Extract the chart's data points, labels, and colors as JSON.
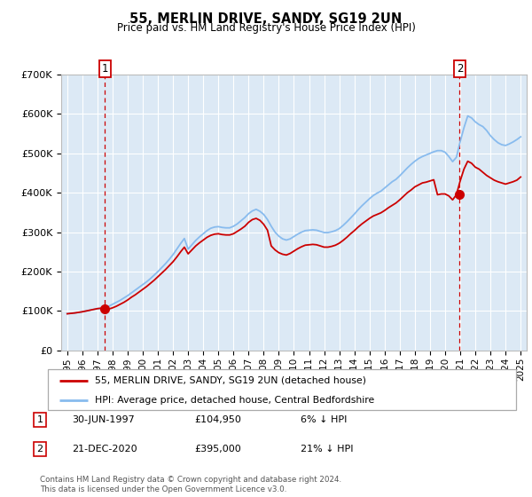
{
  "title": "55, MERLIN DRIVE, SANDY, SG19 2UN",
  "subtitle": "Price paid vs. HM Land Registry's House Price Index (HPI)",
  "background_color": "#dce9f5",
  "plot_bg_color": "#dce9f5",
  "ylim": [
    0,
    700000
  ],
  "yticks": [
    0,
    100000,
    200000,
    300000,
    400000,
    500000,
    600000,
    700000
  ],
  "ytick_labels": [
    "£0",
    "£100K",
    "£200K",
    "£300K",
    "£400K",
    "£500K",
    "£600K",
    "£700K"
  ],
  "xlim_start": 1994.6,
  "xlim_end": 2025.4,
  "xtick_years": [
    1995,
    1996,
    1997,
    1998,
    1999,
    2000,
    2001,
    2002,
    2003,
    2004,
    2005,
    2006,
    2007,
    2008,
    2009,
    2010,
    2011,
    2012,
    2013,
    2014,
    2015,
    2016,
    2017,
    2018,
    2019,
    2020,
    2021,
    2022,
    2023,
    2024,
    2025
  ],
  "sale1_x": 1997.5,
  "sale1_y": 104950,
  "sale1_label": "1",
  "sale2_x": 2020.97,
  "sale2_y": 395000,
  "sale2_label": "2",
  "sale_color": "#cc0000",
  "hpi_color": "#88bbee",
  "marker_color": "#cc0000",
  "vline_color": "#cc0000",
  "legend_label_sale": "55, MERLIN DRIVE, SANDY, SG19 2UN (detached house)",
  "legend_label_hpi": "HPI: Average price, detached house, Central Bedfordshire",
  "table_row1_num": "1",
  "table_row1_date": "30-JUN-1997",
  "table_row1_price": "£104,950",
  "table_row1_hpi": "6% ↓ HPI",
  "table_row2_num": "2",
  "table_row2_date": "21-DEC-2020",
  "table_row2_price": "£395,000",
  "table_row2_hpi": "21% ↓ HPI",
  "footer": "Contains HM Land Registry data © Crown copyright and database right 2024.\nThis data is licensed under the Open Government Licence v3.0.",
  "grid_color": "#ffffff",
  "hpi_data_x": [
    1995.0,
    1995.25,
    1995.5,
    1995.75,
    1996.0,
    1996.25,
    1996.5,
    1996.75,
    1997.0,
    1997.25,
    1997.5,
    1997.75,
    1998.0,
    1998.25,
    1998.5,
    1998.75,
    1999.0,
    1999.25,
    1999.5,
    1999.75,
    2000.0,
    2000.25,
    2000.5,
    2000.75,
    2001.0,
    2001.25,
    2001.5,
    2001.75,
    2002.0,
    2002.25,
    2002.5,
    2002.75,
    2003.0,
    2003.25,
    2003.5,
    2003.75,
    2004.0,
    2004.25,
    2004.5,
    2004.75,
    2005.0,
    2005.25,
    2005.5,
    2005.75,
    2006.0,
    2006.25,
    2006.5,
    2006.75,
    2007.0,
    2007.25,
    2007.5,
    2007.75,
    2008.0,
    2008.25,
    2008.5,
    2008.75,
    2009.0,
    2009.25,
    2009.5,
    2009.75,
    2010.0,
    2010.25,
    2010.5,
    2010.75,
    2011.0,
    2011.25,
    2011.5,
    2011.75,
    2012.0,
    2012.25,
    2012.5,
    2012.75,
    2013.0,
    2013.25,
    2013.5,
    2013.75,
    2014.0,
    2014.25,
    2014.5,
    2014.75,
    2015.0,
    2015.25,
    2015.5,
    2015.75,
    2016.0,
    2016.25,
    2016.5,
    2016.75,
    2017.0,
    2017.25,
    2017.5,
    2017.75,
    2018.0,
    2018.25,
    2018.5,
    2018.75,
    2019.0,
    2019.25,
    2019.5,
    2019.75,
    2020.0,
    2020.25,
    2020.5,
    2020.75,
    2021.0,
    2021.25,
    2021.5,
    2021.75,
    2022.0,
    2022.25,
    2022.5,
    2022.75,
    2023.0,
    2023.25,
    2023.5,
    2023.75,
    2024.0,
    2024.25,
    2024.5,
    2024.75,
    2025.0
  ],
  "hpi_data_y": [
    93000,
    94000,
    95000,
    96500,
    98000,
    100000,
    102000,
    104000,
    106000,
    107000,
    108000,
    112000,
    117000,
    122000,
    127000,
    133000,
    139000,
    146000,
    153000,
    160000,
    167000,
    174000,
    182000,
    191000,
    200000,
    210000,
    220000,
    231000,
    243000,
    257000,
    271000,
    284000,
    257000,
    268000,
    279000,
    288000,
    296000,
    304000,
    310000,
    313000,
    314000,
    312000,
    311000,
    311000,
    315000,
    321000,
    329000,
    337000,
    347000,
    354000,
    358000,
    353000,
    345000,
    332000,
    315000,
    300000,
    290000,
    283000,
    280000,
    283000,
    289000,
    295000,
    300000,
    304000,
    305000,
    306000,
    305000,
    302000,
    299000,
    299000,
    301000,
    304000,
    309000,
    317000,
    326000,
    336000,
    346000,
    357000,
    367000,
    376000,
    385000,
    393000,
    399000,
    404000,
    412000,
    420000,
    428000,
    434000,
    443000,
    453000,
    463000,
    472000,
    480000,
    487000,
    492000,
    496000,
    500000,
    504000,
    507000,
    507000,
    503000,
    492000,
    479000,
    490000,
    530000,
    565000,
    595000,
    590000,
    580000,
    573000,
    568000,
    558000,
    545000,
    535000,
    527000,
    522000,
    520000,
    524000,
    529000,
    535000,
    542000
  ],
  "sale_line_x": [
    1995.0,
    1995.25,
    1995.5,
    1995.75,
    1996.0,
    1996.25,
    1996.5,
    1996.75,
    1997.0,
    1997.25,
    1997.5,
    1997.75,
    1998.0,
    1998.25,
    1998.5,
    1998.75,
    1999.0,
    1999.25,
    1999.5,
    1999.75,
    2000.0,
    2000.25,
    2000.5,
    2000.75,
    2001.0,
    2001.25,
    2001.5,
    2001.75,
    2002.0,
    2002.25,
    2002.5,
    2002.75,
    2003.0,
    2003.25,
    2003.5,
    2003.75,
    2004.0,
    2004.25,
    2004.5,
    2004.75,
    2005.0,
    2005.25,
    2005.5,
    2005.75,
    2006.0,
    2006.25,
    2006.5,
    2006.75,
    2007.0,
    2007.25,
    2007.5,
    2007.75,
    2008.0,
    2008.25,
    2008.5,
    2008.75,
    2009.0,
    2009.25,
    2009.5,
    2009.75,
    2010.0,
    2010.25,
    2010.5,
    2010.75,
    2011.0,
    2011.25,
    2011.5,
    2011.75,
    2012.0,
    2012.25,
    2012.5,
    2012.75,
    2013.0,
    2013.25,
    2013.5,
    2013.75,
    2014.0,
    2014.25,
    2014.5,
    2014.75,
    2015.0,
    2015.25,
    2015.5,
    2015.75,
    2016.0,
    2016.25,
    2016.5,
    2016.75,
    2017.0,
    2017.25,
    2017.5,
    2017.75,
    2018.0,
    2018.25,
    2018.5,
    2018.75,
    2019.0,
    2019.25,
    2019.5,
    2019.75,
    2020.0,
    2020.25,
    2020.5,
    2020.75,
    2021.0,
    2021.25,
    2021.5,
    2021.75,
    2022.0,
    2022.25,
    2022.5,
    2022.75,
    2023.0,
    2023.25,
    2023.5,
    2023.75,
    2024.0,
    2024.25,
    2024.5,
    2024.75,
    2025.0
  ],
  "sale_line_y": [
    93000,
    94000,
    95000,
    96500,
    98000,
    100000,
    102000,
    104000,
    106000,
    107000,
    104950,
    105000,
    108000,
    112000,
    117000,
    122000,
    128000,
    135000,
    141000,
    148000,
    155000,
    162000,
    170000,
    178000,
    187000,
    196000,
    205000,
    215000,
    225000,
    237000,
    250000,
    262000,
    245000,
    255000,
    265000,
    273000,
    280000,
    287000,
    292000,
    295000,
    296000,
    294000,
    293000,
    293000,
    296000,
    302000,
    308000,
    315000,
    325000,
    332000,
    335000,
    330000,
    320000,
    305000,
    265000,
    255000,
    248000,
    244000,
    242000,
    246000,
    252000,
    258000,
    263000,
    267000,
    268000,
    269000,
    268000,
    265000,
    262000,
    262000,
    264000,
    267000,
    272000,
    279000,
    287000,
    296000,
    304000,
    313000,
    321000,
    328000,
    335000,
    341000,
    345000,
    349000,
    355000,
    362000,
    368000,
    374000,
    382000,
    391000,
    400000,
    407000,
    415000,
    420000,
    425000,
    427000,
    430000,
    433000,
    395000,
    397000,
    397000,
    392000,
    382000,
    395000,
    430000,
    460000,
    480000,
    475000,
    465000,
    460000,
    452000,
    444000,
    438000,
    432000,
    428000,
    425000,
    422000,
    425000,
    428000,
    432000,
    440000
  ]
}
